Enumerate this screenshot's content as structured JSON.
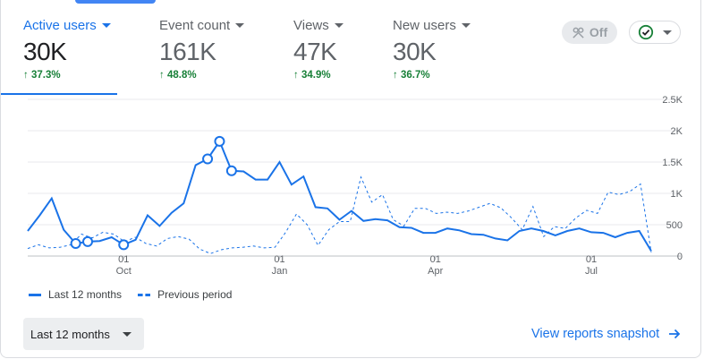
{
  "metrics": [
    {
      "label": "Active users",
      "value": "30K",
      "change": "37.3%"
    },
    {
      "label": "Event count",
      "value": "161K",
      "change": "48.8%"
    },
    {
      "label": "Views",
      "value": "47K",
      "change": "34.9%"
    },
    {
      "label": "New users",
      "value": "30K",
      "change": "36.7%"
    }
  ],
  "controls": {
    "insights_toggle_label": "Off",
    "insights_icon": "people-icon",
    "check_icon": "check-circle-icon"
  },
  "chart_data": {
    "type": "line",
    "y_ticks": [
      "2.5K",
      "2K",
      "1.5K",
      "1K",
      "500",
      "0"
    ],
    "ylim": [
      0,
      2500
    ],
    "x_ticks": [
      {
        "day": "01",
        "month": "Oct",
        "week": 8
      },
      {
        "day": "01",
        "month": "Jan",
        "week": 21
      },
      {
        "day": "01",
        "month": "Apr",
        "week": 34
      },
      {
        "day": "01",
        "month": "Jul",
        "week": 47
      }
    ],
    "series": [
      {
        "name": "Last 12 months",
        "style": "solid",
        "values": [
          400,
          650,
          920,
          420,
          200,
          230,
          240,
          300,
          180,
          260,
          650,
          480,
          690,
          840,
          1450,
          1550,
          1830,
          1360,
          1350,
          1220,
          1220,
          1500,
          1140,
          1270,
          780,
          760,
          580,
          720,
          560,
          590,
          570,
          460,
          450,
          370,
          370,
          440,
          410,
          350,
          340,
          280,
          250,
          400,
          440,
          400,
          330,
          400,
          440,
          380,
          370,
          300,
          370,
          400,
          80
        ],
        "markers": [
          4,
          5,
          8,
          15,
          16,
          17
        ]
      },
      {
        "name": "Previous period",
        "style": "dashed",
        "values": [
          120,
          180,
          130,
          140,
          180,
          350,
          290,
          380,
          350,
          230,
          300,
          200,
          160,
          280,
          310,
          270,
          110,
          40,
          100,
          130,
          140,
          160,
          130,
          140,
          380,
          670,
          500,
          170,
          420,
          550,
          550,
          1260,
          860,
          980,
          580,
          480,
          760,
          760,
          680,
          700,
          680,
          720,
          780,
          840,
          770,
          610,
          420,
          790,
          310,
          470,
          440,
          610,
          730,
          680,
          1020,
          980,
          1030,
          1150,
          60
        ]
      }
    ]
  },
  "legend": {
    "current": "Last 12 months",
    "previous": "Previous period"
  },
  "footer": {
    "range_label": "Last 12 months",
    "snapshot_link": "View reports snapshot"
  },
  "colors": {
    "accent": "#1a73e8",
    "positive": "#188038"
  }
}
